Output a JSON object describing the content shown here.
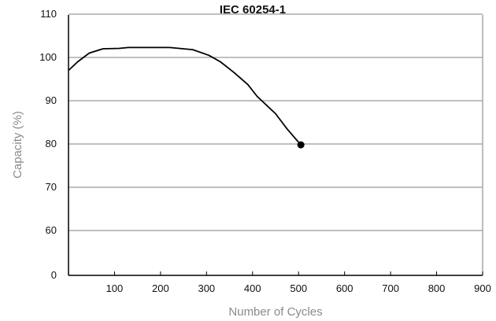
{
  "chart_data": {
    "type": "line",
    "title": "IEC 60254-1",
    "xlabel": "Number of Cycles",
    "ylabel": "Capacity (%)",
    "xlim": [
      0,
      900
    ],
    "xticks": [
      100,
      200,
      300,
      400,
      500,
      600,
      700,
      800,
      900
    ],
    "yticks": [
      0,
      60,
      70,
      80,
      90,
      100,
      110
    ],
    "grid": "horizontal",
    "series": [
      {
        "x": [
          0,
          20,
          45,
          75,
          110,
          130,
          170,
          220,
          270,
          305,
          330,
          360,
          390,
          410,
          450,
          475,
          505
        ],
        "y": [
          97,
          99,
          101,
          102,
          102.1,
          102.3,
          102.3,
          102.3,
          101.8,
          100.5,
          99,
          96.5,
          93.7,
          91,
          87,
          83.5,
          79.8
        ],
        "end_marker": true,
        "color": "#000000"
      }
    ]
  }
}
